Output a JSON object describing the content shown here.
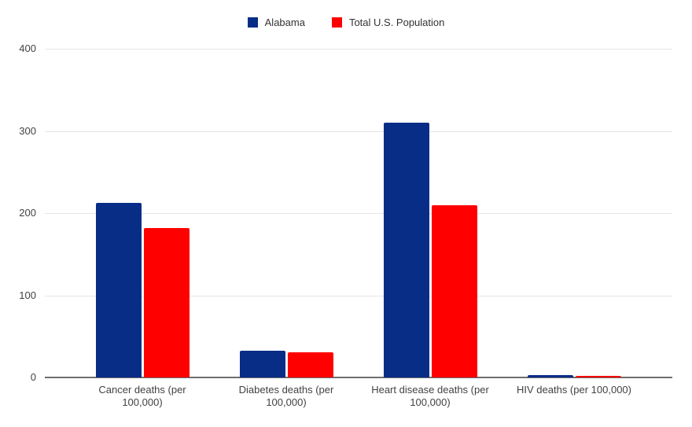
{
  "chart_data": {
    "type": "bar",
    "categories": [
      "Cancer deaths (per 100,000)",
      "Diabetes deaths (per 100,000)",
      "Heart disease deaths (per 100,000)",
      "HIV deaths (per 100,000)"
    ],
    "series": [
      {
        "name": "Alabama",
        "color": "#082d87",
        "values": [
          212,
          33,
          310,
          2.5
        ]
      },
      {
        "name": "Total U.S. Population",
        "color": "#fe0000",
        "values": [
          182,
          31,
          210,
          2
        ]
      }
    ],
    "title": "",
    "xlabel": "",
    "ylabel": "",
    "ylim": [
      0,
      400
    ],
    "yticks": [
      0,
      100,
      200,
      300,
      400
    ],
    "grid": true,
    "legend_position": "top",
    "colors": {
      "gridline": "#e6e6e6",
      "axis_line": "#6e6e6e",
      "tick_text": "#424242",
      "legend_text": "#333333",
      "background": "#ffffff"
    }
  }
}
